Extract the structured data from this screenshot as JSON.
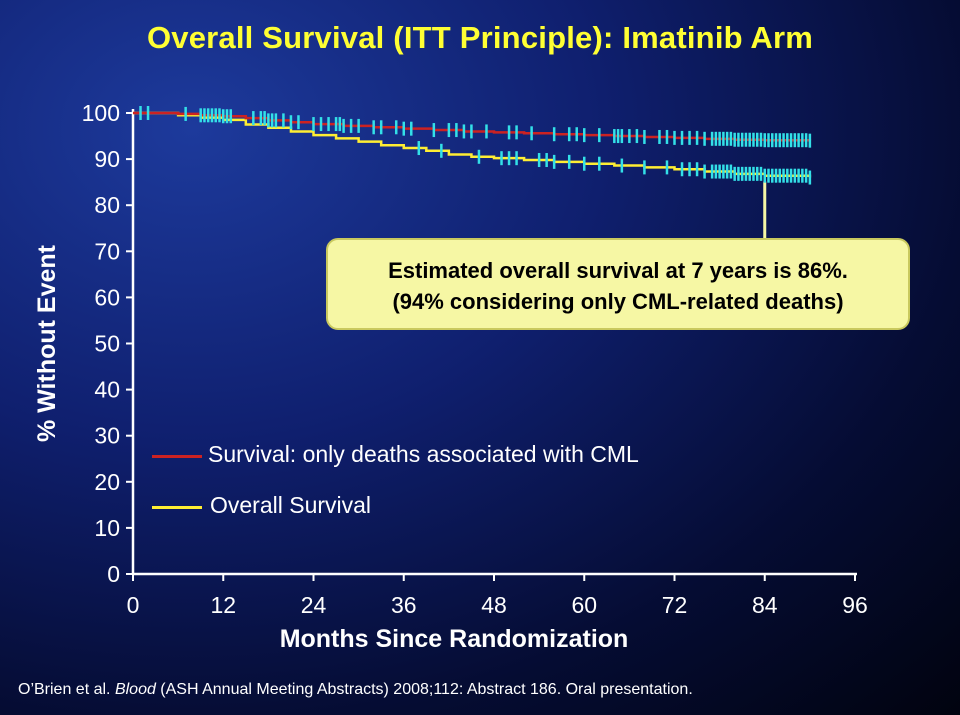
{
  "slide": {
    "title": "Overall Survival (ITT Principle): Imatinib Arm"
  },
  "callout": {
    "line1": "Estimated overall survival at 7 years is 86%.",
    "line2": "(94% considering only CML-related deaths)"
  },
  "footer": {
    "pre": "O’Brien et al. ",
    "journal": "Blood",
    "post": " (ASH Annual Meeting Abstracts) 2008;112: Abstract 186. Oral presentation."
  },
  "colors": {
    "title": "#ffff33",
    "cml_series": "#cc2222",
    "overall_series": "#ffee33",
    "censor_marks": "#33e0e8",
    "callout_bg": "#f6f7a4"
  },
  "chart_data": {
    "type": "line",
    "title": "Overall Survival (ITT Principle): Imatinib Arm",
    "xlabel": "Months Since Randomization",
    "ylabel": "% Without Event",
    "xlim": [
      0,
      96
    ],
    "ylim": [
      0,
      100
    ],
    "x_ticks": [
      0,
      12,
      24,
      36,
      48,
      60,
      72,
      84,
      96
    ],
    "y_ticks": [
      0,
      10,
      20,
      30,
      40,
      50,
      60,
      70,
      80,
      90,
      100
    ],
    "grid": false,
    "legend_position": "lower-left",
    "series": [
      {
        "name": "Survival: only deaths associated with CML",
        "color": "#cc2222",
        "x": [
          0,
          6,
          9,
          12,
          15,
          18,
          21,
          24,
          28,
          32,
          36,
          40,
          44,
          48,
          52,
          56,
          60,
          64,
          68,
          72,
          76,
          80,
          84,
          90
        ],
        "y": [
          100,
          99.8,
          99.5,
          99.3,
          98.9,
          98.4,
          98.0,
          97.6,
          97.2,
          96.9,
          96.6,
          96.3,
          96.0,
          95.8,
          95.6,
          95.4,
          95.2,
          95.0,
          94.8,
          94.6,
          94.4,
          94.2,
          94.1,
          94.0
        ],
        "censored_x": [
          1,
          2,
          7,
          9,
          9.5,
          10,
          10.5,
          11,
          11.5,
          12,
          12.5,
          13,
          16,
          17,
          17.5,
          18,
          18.5,
          19,
          20,
          21,
          22,
          24,
          25,
          26,
          27,
          27.5,
          28,
          29,
          30,
          32,
          33,
          35,
          36,
          37,
          40,
          42,
          43,
          44,
          45,
          47,
          50,
          51,
          53,
          56,
          58,
          59,
          60,
          62,
          64,
          64.5,
          65,
          66,
          67,
          68,
          70,
          71,
          72,
          73,
          74,
          75,
          76,
          77,
          77.5,
          78,
          78.5,
          79,
          79.5,
          80,
          80.5,
          81,
          81.5,
          82,
          82.5,
          83,
          83.5,
          84,
          84.5,
          85,
          85.5,
          86,
          86.5,
          87,
          87.5,
          88,
          88.5,
          89,
          89.5,
          90
        ]
      },
      {
        "name": "Overall Survival",
        "color": "#ffee33",
        "x": [
          0,
          6,
          9,
          12,
          15,
          18,
          21,
          24,
          27,
          30,
          33,
          36,
          39,
          42,
          45,
          48,
          52,
          56,
          60,
          64,
          68,
          72,
          76,
          80,
          84,
          90
        ],
        "y": [
          100,
          99.5,
          99.0,
          98.5,
          97.5,
          96.8,
          96.0,
          95.2,
          94.5,
          93.8,
          93.0,
          92.4,
          91.8,
          91.0,
          90.5,
          90.2,
          89.8,
          89.4,
          89.0,
          88.6,
          88.2,
          87.8,
          87.3,
          86.8,
          86.4,
          86.0
        ],
        "censored_x": [
          38,
          41,
          46,
          49,
          50,
          51,
          54,
          55,
          56,
          58,
          60,
          62,
          65,
          68,
          71,
          73,
          74,
          75,
          76,
          77,
          77.5,
          78,
          78.5,
          79,
          79.5,
          80,
          80.5,
          81,
          81.5,
          82,
          82.5,
          83,
          83.5,
          84,
          84.5,
          85,
          85.5,
          86,
          86.5,
          87,
          87.5,
          88,
          88.5,
          89,
          89.5,
          90
        ]
      }
    ]
  }
}
